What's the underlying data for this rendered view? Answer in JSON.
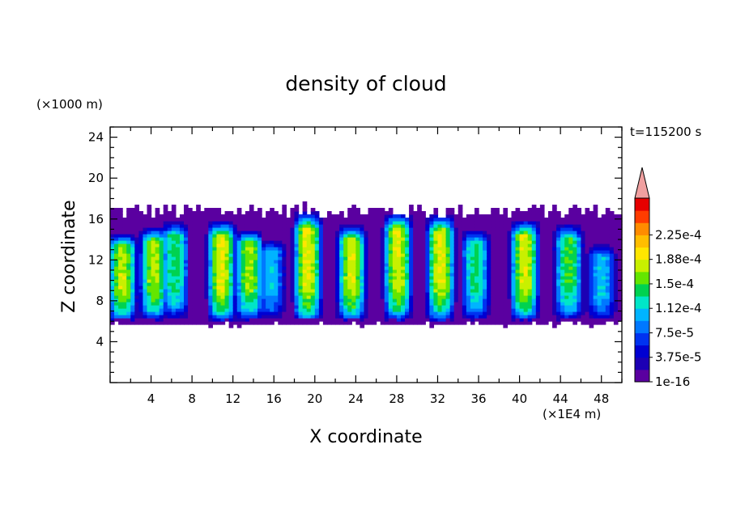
{
  "chart_data": {
    "type": "heatmap",
    "title": "density of cloud",
    "xlabel": "X coordinate",
    "ylabel": "Z coordinate",
    "x_unit": "(×1E4 m)",
    "y_unit": "(×1000 m)",
    "time_label": "t=115200 s",
    "xlim": [
      0,
      50
    ],
    "ylim": [
      0,
      25
    ],
    "xticks": [
      "4",
      "8",
      "12",
      "16",
      "20",
      "24",
      "28",
      "32",
      "36",
      "40",
      "44",
      "48"
    ],
    "yticks": [
      "4",
      "8",
      "12",
      "16",
      "20",
      "24"
    ],
    "colorbar": {
      "levels": [
        "1e-16",
        "1.875e-5",
        "3.75e-5",
        "5.625e-5",
        "7.5e-5",
        "9.375e-5",
        "1.12e-4",
        "1.31e-4",
        "1.5e-4",
        "1.69e-4",
        "1.88e-4",
        "2.06e-4",
        "2.25e-4",
        "2.44e-4"
      ],
      "labels": [
        "1e-16",
        "3.75e-5",
        "7.5e-5",
        "1.12e-4",
        "1.5e-4",
        "1.88e-4",
        "2.25e-4"
      ],
      "colors": [
        "#5a00a0",
        "#1c00b4",
        "#0000d2",
        "#0032f0",
        "#0078ff",
        "#00b4ff",
        "#00e6c8",
        "#00d250",
        "#64e600",
        "#c8f000",
        "#ffe600",
        "#ffbe00",
        "#ff8c00",
        "#ff3c00",
        "#e60000"
      ],
      "overflow_color": "#f0a0a0"
    },
    "cloud_band": {
      "base_z": 5.5,
      "top_z": 17.5
    },
    "cells": [
      {
        "x": 1.2,
        "base": 5.8,
        "top": 14.6,
        "peak": 0.000185
      },
      {
        "x": 4.3,
        "base": 6.0,
        "top": 15.2,
        "peak": 0.00018
      },
      {
        "x": 6.3,
        "base": 6.2,
        "top": 15.8,
        "peak": 0.000145
      },
      {
        "x": 10.9,
        "base": 5.8,
        "top": 15.8,
        "peak": 0.000195
      },
      {
        "x": 13.6,
        "base": 6.0,
        "top": 15.0,
        "peak": 0.00017
      },
      {
        "x": 15.7,
        "base": 6.2,
        "top": 14.0,
        "peak": 0.00011
      },
      {
        "x": 19.3,
        "base": 5.6,
        "top": 16.7,
        "peak": 0.000195
      },
      {
        "x": 23.6,
        "base": 5.8,
        "top": 15.4,
        "peak": 0.00019
      },
      {
        "x": 28.1,
        "base": 5.8,
        "top": 16.6,
        "peak": 0.00019
      },
      {
        "x": 32.3,
        "base": 5.8,
        "top": 16.4,
        "peak": 0.000195
      },
      {
        "x": 35.7,
        "base": 6.0,
        "top": 15.0,
        "peak": 0.00014
      },
      {
        "x": 40.5,
        "base": 5.8,
        "top": 15.9,
        "peak": 0.00019
      },
      {
        "x": 44.8,
        "base": 6.0,
        "top": 15.5,
        "peak": 0.000155
      },
      {
        "x": 48.0,
        "base": 6.0,
        "top": 13.5,
        "peak": 0.00011
      }
    ]
  }
}
